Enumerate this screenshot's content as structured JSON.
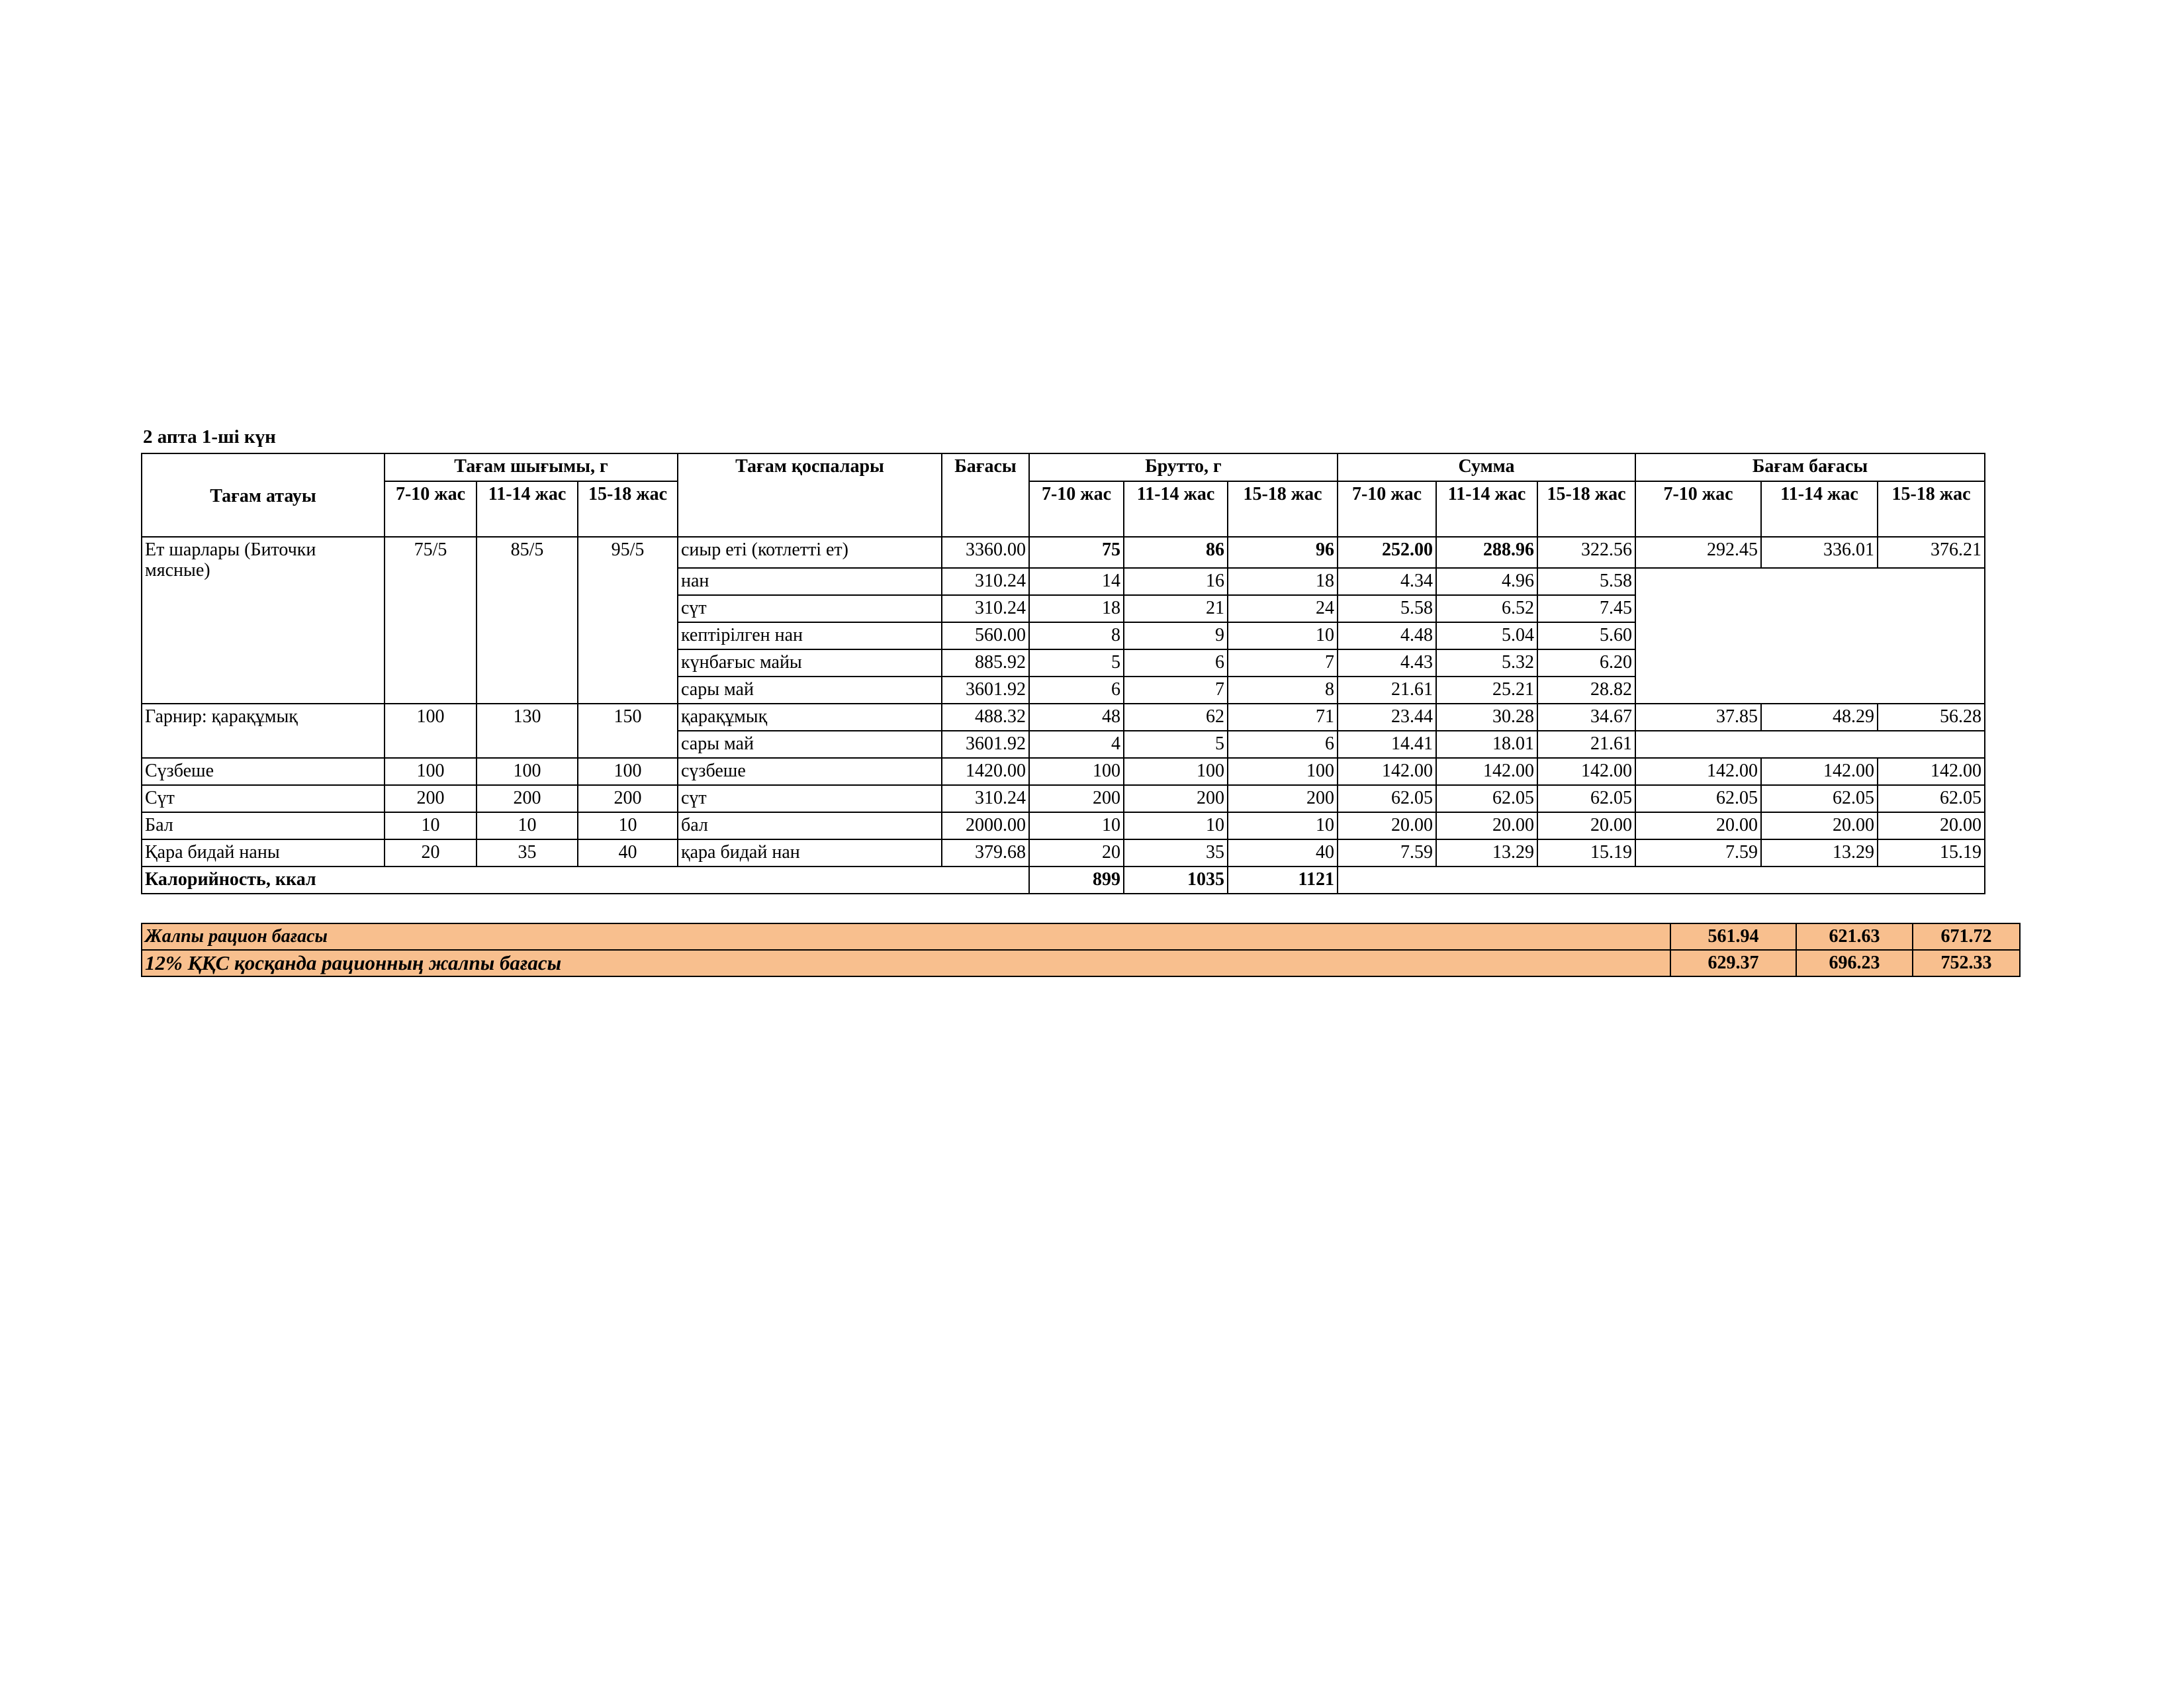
{
  "title": "2 апта 1-ші күн",
  "headers": {
    "dish_name": "Тағам атауы",
    "yield": "Тағам шығымы, г",
    "ingredients": "Тағам қоспалары",
    "price": "Бағасы",
    "brutto": "Брутто, г",
    "sum": "Сумма",
    "cost": "Бағам бағасы",
    "ages": [
      "7-10 жас",
      "11-14 жас",
      "15-18 жас"
    ]
  },
  "dishes": [
    {
      "name": "Ет шарлары (Биточки мясные)",
      "yield": [
        "75/5",
        "85/5",
        "95/5"
      ],
      "cost": [
        "292.45",
        "336.01",
        "376.21"
      ],
      "ingredients": [
        {
          "name": "сиыр еті (котлетті ет)",
          "price": "3360.00",
          "brutto": [
            "75",
            "86",
            "96"
          ],
          "sum": [
            "252.00",
            "288.96",
            "322.56"
          ]
        },
        {
          "name": "нан",
          "price": "310.24",
          "brutto": [
            "14",
            "16",
            "18"
          ],
          "sum": [
            "4.34",
            "4.96",
            "5.58"
          ]
        },
        {
          "name": "сүт",
          "price": "310.24",
          "brutto": [
            "18",
            "21",
            "24"
          ],
          "sum": [
            "5.58",
            "6.52",
            "7.45"
          ]
        },
        {
          "name": "кептірілген нан",
          "price": "560.00",
          "brutto": [
            "8",
            "9",
            "10"
          ],
          "sum": [
            "4.48",
            "5.04",
            "5.60"
          ]
        },
        {
          "name": "күнбағыс майы",
          "price": "885.92",
          "brutto": [
            "5",
            "6",
            "7"
          ],
          "sum": [
            "4.43",
            "5.32",
            "6.20"
          ]
        },
        {
          "name": "сары май",
          "price": "3601.92",
          "brutto": [
            "6",
            "7",
            "8"
          ],
          "sum": [
            "21.61",
            "25.21",
            "28.82"
          ]
        }
      ]
    },
    {
      "name": "Гарнир: қарақұмық",
      "yield": [
        "100",
        "130",
        "150"
      ],
      "cost": [
        "37.85",
        "48.29",
        "56.28"
      ],
      "ingredients": [
        {
          "name": "қарақұмық",
          "price": "488.32",
          "brutto": [
            "48",
            "62",
            "71"
          ],
          "sum": [
            "23.44",
            "30.28",
            "34.67"
          ]
        },
        {
          "name": "сары май",
          "price": "3601.92",
          "brutto": [
            "4",
            "5",
            "6"
          ],
          "sum": [
            "14.41",
            "18.01",
            "21.61"
          ]
        }
      ]
    },
    {
      "name": "Сүзбеше",
      "yield": [
        "100",
        "100",
        "100"
      ],
      "cost": [
        "142.00",
        "142.00",
        "142.00"
      ],
      "ingredients": [
        {
          "name": "сүзбеше",
          "price": "1420.00",
          "brutto": [
            "100",
            "100",
            "100"
          ],
          "sum": [
            "142.00",
            "142.00",
            "142.00"
          ]
        }
      ]
    },
    {
      "name": "Сүт",
      "yield": [
        "200",
        "200",
        "200"
      ],
      "cost": [
        "62.05",
        "62.05",
        "62.05"
      ],
      "ingredients": [
        {
          "name": "сүт",
          "price": "310.24",
          "brutto": [
            "200",
            "200",
            "200"
          ],
          "sum": [
            "62.05",
            "62.05",
            "62.05"
          ]
        }
      ]
    },
    {
      "name": "Бал",
      "yield": [
        "10",
        "10",
        "10"
      ],
      "cost": [
        "20.00",
        "20.00",
        "20.00"
      ],
      "ingredients": [
        {
          "name": "бал",
          "price": "2000.00",
          "brutto": [
            "10",
            "10",
            "10"
          ],
          "sum": [
            "20.00",
            "20.00",
            "20.00"
          ]
        }
      ]
    },
    {
      "name": "Қара бидай наны",
      "yield": [
        "20",
        "35",
        "40"
      ],
      "cost": [
        "7.59",
        "13.29",
        "15.19"
      ],
      "ingredients": [
        {
          "name": "қара бидай нан",
          "price": "379.68",
          "brutto": [
            "20",
            "35",
            "40"
          ],
          "sum": [
            "7.59",
            "13.29",
            "15.19"
          ]
        }
      ]
    }
  ],
  "calories": {
    "label": "Калорийность, ккал",
    "values": [
      "899",
      "1035",
      "1121"
    ]
  },
  "summary": [
    {
      "label": "Жалпы рацион бағасы",
      "values": [
        "561.94",
        "621.63",
        "671.72"
      ]
    },
    {
      "label": "12% ҚҚС қосқанда рационның жалпы бағасы",
      "values": [
        "629.37",
        "696.23",
        "752.33"
      ]
    }
  ],
  "colors": {
    "summary_fill": "#f8bf8e"
  }
}
